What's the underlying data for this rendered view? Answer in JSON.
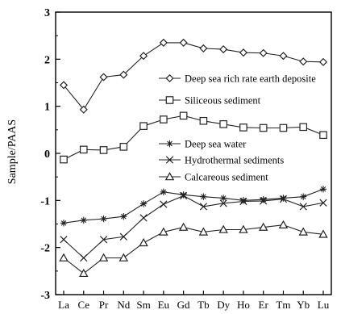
{
  "chart_data": {
    "type": "line",
    "ylabel": "Sample/PAAS",
    "xlabel": "",
    "ylim": [
      -3,
      3
    ],
    "yticks": [
      "-3",
      "-2",
      "-1",
      "0",
      "1",
      "2",
      "3"
    ],
    "grid": false,
    "legend_position": "inside-right",
    "categories": [
      "La",
      "Ce",
      "Pr",
      "Nd",
      "Sm",
      "Eu",
      "Gd",
      "Tb",
      "Dy",
      "Ho",
      "Er",
      "Tm",
      "Yb",
      "Lu"
    ],
    "series": [
      {
        "name": "Deep sea rich rate earth deposite",
        "marker": "diamond",
        "values": [
          1.45,
          0.93,
          1.62,
          1.67,
          2.07,
          2.35,
          2.35,
          2.23,
          2.21,
          2.14,
          2.13,
          2.07,
          1.95,
          1.94
        ]
      },
      {
        "name": "Siliceous sediment",
        "marker": "square",
        "values": [
          -0.13,
          0.08,
          0.07,
          0.14,
          0.58,
          0.72,
          0.8,
          0.69,
          0.62,
          0.55,
          0.54,
          0.54,
          0.56,
          0.39
        ]
      },
      {
        "name": "Deep sea water",
        "marker": "asterisk",
        "values": [
          -1.48,
          -1.42,
          -1.39,
          -1.34,
          -1.07,
          -0.82,
          -0.88,
          -0.92,
          -0.95,
          -1.0,
          -0.98,
          -0.95,
          -0.92,
          -0.76
        ]
      },
      {
        "name": "Hydrothermal sediments",
        "marker": "cross",
        "values": [
          -1.83,
          -2.22,
          -1.83,
          -1.77,
          -1.37,
          -1.08,
          -0.9,
          -1.13,
          -1.06,
          -1.02,
          -1.01,
          -0.97,
          -1.13,
          -1.05
        ]
      },
      {
        "name": "Calcareous sediment",
        "marker": "triangle",
        "values": [
          -2.22,
          -2.55,
          -2.22,
          -2.22,
          -1.9,
          -1.67,
          -1.57,
          -1.67,
          -1.62,
          -1.62,
          -1.57,
          -1.52,
          -1.67,
          -1.72
        ]
      }
    ]
  }
}
